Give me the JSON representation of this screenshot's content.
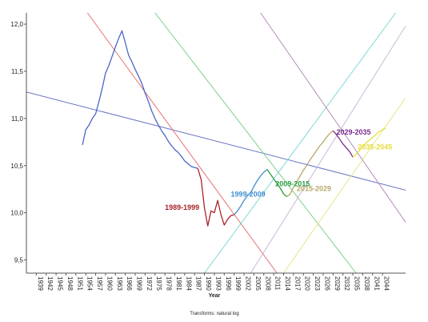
{
  "chart_data": {
    "type": "line",
    "xlabel": "Year",
    "footnote": "Transforms: natural log",
    "xlim": [
      1936,
      2051
    ],
    "ylim": [
      9.36,
      12.12
    ],
    "yticks": [
      9.5,
      10.0,
      10.5,
      11.0,
      11.5,
      12.0
    ],
    "ytick_labels": [
      "9,5",
      "10,0",
      "10,5",
      "11,0",
      "11,5",
      "12,0"
    ],
    "xticks": [
      1939,
      1942,
      1945,
      1948,
      1951,
      1954,
      1957,
      1960,
      1963,
      1966,
      1969,
      1972,
      1975,
      1978,
      1981,
      1984,
      1987,
      1990,
      1993,
      1996,
      1999,
      2002,
      2005,
      2008,
      2011,
      2014,
      2017,
      2020,
      2023,
      2026,
      2029,
      2032,
      2035,
      2038,
      2041,
      2044
    ],
    "series": [
      {
        "color": "#4a66c9",
        "x": [
          1953,
          1954,
          1955,
          1956,
          1957,
          1958,
          1959,
          1960,
          1961,
          1962,
          1963,
          1964,
          1965,
          1966,
          1967,
          1968,
          1969,
          1970,
          1971,
          1972,
          1973,
          1974,
          1975,
          1976,
          1977,
          1978,
          1979,
          1980,
          1981,
          1982,
          1983,
          1984,
          1985,
          1986,
          1987,
          1988
        ],
        "y": [
          10.72,
          10.88,
          10.93,
          11.0,
          11.05,
          11.18,
          11.32,
          11.48,
          11.56,
          11.66,
          11.76,
          11.85,
          11.93,
          11.8,
          11.67,
          11.6,
          11.52,
          11.45,
          11.37,
          11.27,
          11.18,
          11.08,
          11.0,
          10.93,
          10.87,
          10.82,
          10.76,
          10.71,
          10.67,
          10.64,
          10.6,
          10.55,
          10.52,
          10.49,
          10.48,
          10.47
        ]
      },
      {
        "name": "1989-1999",
        "color": "#a8242a",
        "x": [
          1988,
          1989,
          1990,
          1991,
          1992,
          1993,
          1994,
          1995,
          1996,
          1997,
          1998,
          1999
        ],
        "y": [
          10.47,
          10.35,
          10.05,
          9.86,
          10.02,
          10.0,
          10.13,
          9.98,
          9.87,
          9.93,
          9.97,
          9.98
        ]
      },
      {
        "name": "1999-2009",
        "color": "#3e8ed0",
        "x": [
          1999,
          2000,
          2001,
          2002,
          2003,
          2004,
          2005,
          2006,
          2007,
          2008,
          2009
        ],
        "y": [
          9.98,
          10.02,
          10.07,
          10.13,
          10.18,
          10.21,
          10.28,
          10.34,
          10.39,
          10.43,
          10.46
        ]
      },
      {
        "name": "2009-2015",
        "color": "#2a9c3f",
        "x": [
          2009,
          2010,
          2011,
          2012,
          2013,
          2014,
          2015
        ],
        "y": [
          10.46,
          10.41,
          10.36,
          10.31,
          10.26,
          10.2,
          10.17
        ]
      },
      {
        "name": "2015-2029",
        "color": "#b8a868",
        "x": [
          2015,
          2016,
          2017,
          2018,
          2019,
          2020,
          2021,
          2022,
          2023,
          2024,
          2025,
          2026,
          2027,
          2028,
          2029
        ],
        "y": [
          10.17,
          10.2,
          10.27,
          10.33,
          10.39,
          10.45,
          10.5,
          10.56,
          10.61,
          10.66,
          10.71,
          10.75,
          10.8,
          10.84,
          10.87
        ]
      },
      {
        "name": "2029-2035",
        "color": "#7a2a8c",
        "x": [
          2029,
          2030,
          2031,
          2032,
          2033,
          2034,
          2035
        ],
        "y": [
          10.87,
          10.83,
          10.78,
          10.73,
          10.69,
          10.65,
          10.59
        ]
      },
      {
        "name": "2035-2045",
        "color": "#e6de3c",
        "x": [
          2035,
          2036,
          2037,
          2038,
          2039,
          2040,
          2041,
          2042,
          2043,
          2044,
          2045
        ],
        "y": [
          10.59,
          10.62,
          10.66,
          10.7,
          10.74,
          10.77,
          10.8,
          10.83,
          10.86,
          10.88,
          10.9
        ]
      }
    ],
    "trend_lines": [
      {
        "color": "#6a74c4",
        "x": [
          1936,
          2051
        ],
        "y": [
          11.28,
          10.24
        ]
      },
      {
        "color": "#e57373",
        "x": [
          1954.5,
          2012
        ],
        "y": [
          12.12,
          9.36
        ]
      },
      {
        "color": "#7fcf86",
        "x": [
          1975,
          2036
        ],
        "y": [
          12.12,
          9.36
        ]
      },
      {
        "color": "#7fd9d4",
        "x": [
          1990,
          2048
        ],
        "y": [
          9.36,
          12.12
        ]
      },
      {
        "color": "#c9b8d6",
        "x": [
          2004,
          2051
        ],
        "y": [
          9.36,
          11.98
        ]
      },
      {
        "color": "#e9e48a",
        "x": [
          2014,
          2051
        ],
        "y": [
          9.36,
          11.22
        ]
      },
      {
        "color": "#b48dbb",
        "x": [
          2007,
          2051
        ],
        "y": [
          12.12,
          9.9
        ]
      }
    ],
    "labels": [
      {
        "text": "1989-1999",
        "x": 1978,
        "y": 10.03,
        "color": "#a8242a"
      },
      {
        "text": "1999-2009",
        "x": 1998,
        "y": 10.17,
        "color": "#3e8ed0"
      },
      {
        "text": "2009-2015",
        "x": 2011.5,
        "y": 10.28,
        "color": "#2a9c3f"
      },
      {
        "text": "2015-2029",
        "x": 2018,
        "y": 10.23,
        "color": "#b8a868"
      },
      {
        "text": "2029-2035",
        "x": 2030,
        "y": 10.83,
        "color": "#7a2a8c"
      },
      {
        "text": "2035-2045",
        "x": 2036.5,
        "y": 10.67,
        "color": "#e6de3c"
      }
    ]
  }
}
